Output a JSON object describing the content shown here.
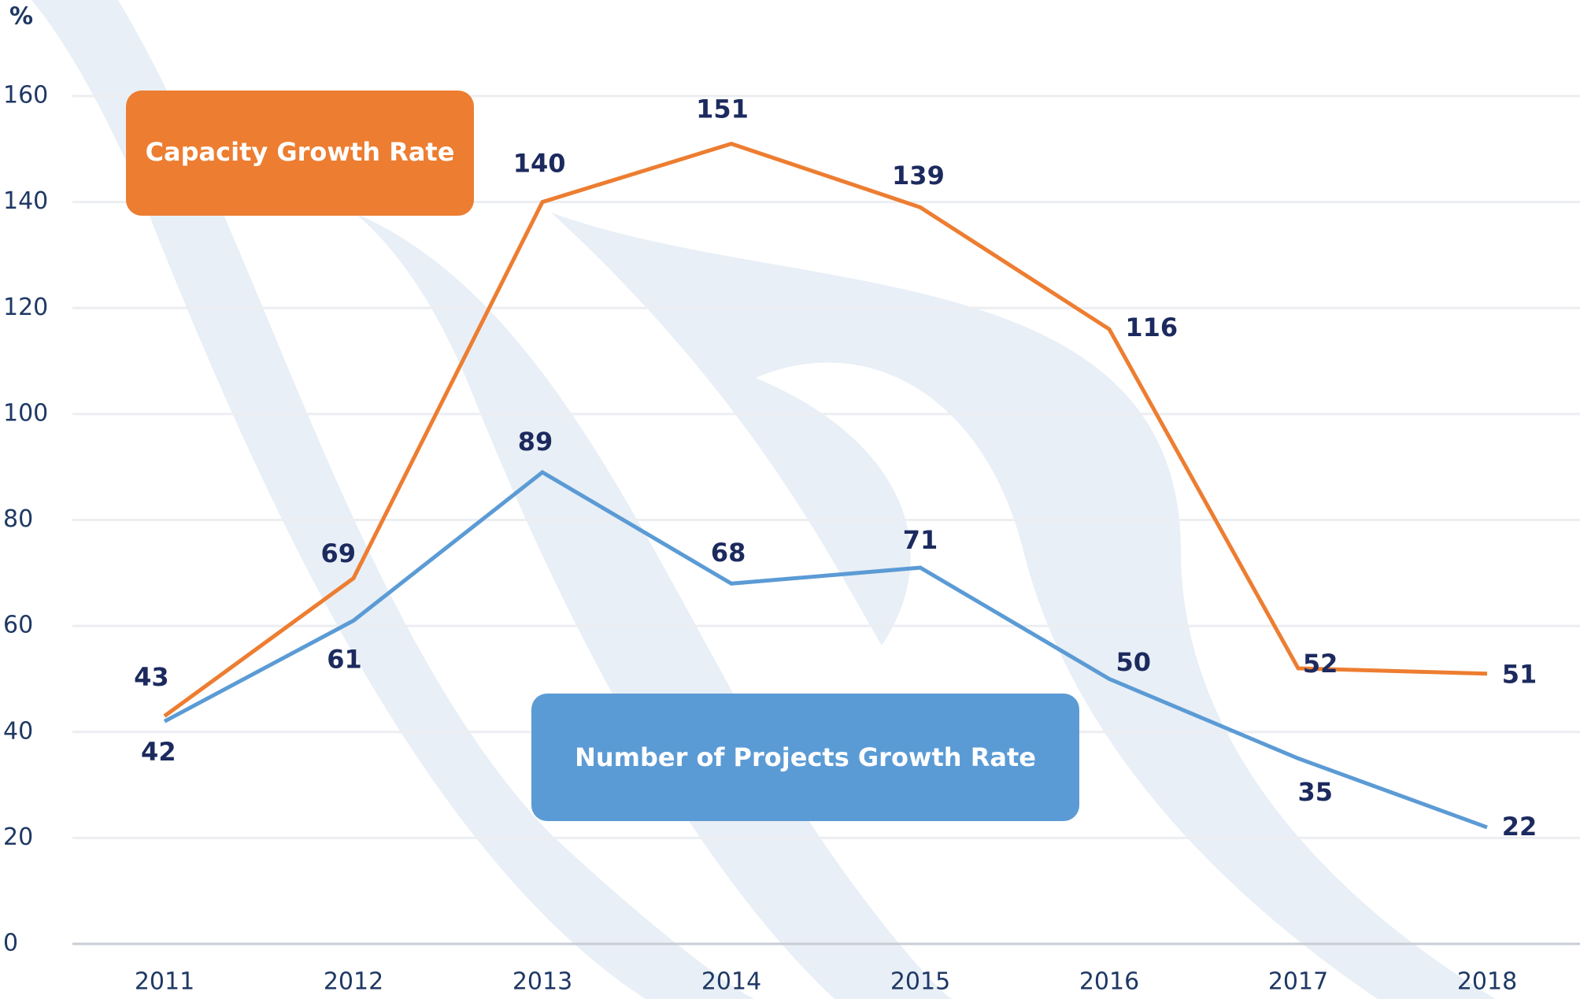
{
  "chart_data": {
    "type": "line",
    "y_label": "%",
    "categories": [
      "2011",
      "2012",
      "2013",
      "2014",
      "2015",
      "2016",
      "2017",
      "2018"
    ],
    "series": [
      {
        "name": "Capacity Growth Rate",
        "color": "#ed7d31",
        "values": [
          43,
          69,
          140,
          151,
          139,
          116,
          52,
          51
        ]
      },
      {
        "name": "Number of Projects Growth Rate",
        "color": "#5b9bd5",
        "values": [
          42,
          61,
          89,
          68,
          71,
          50,
          35,
          22
        ]
      }
    ],
    "ylim": [
      0,
      160
    ],
    "yticks": [
      0,
      20,
      40,
      60,
      80,
      100,
      120,
      140,
      160
    ],
    "grid": true
  }
}
